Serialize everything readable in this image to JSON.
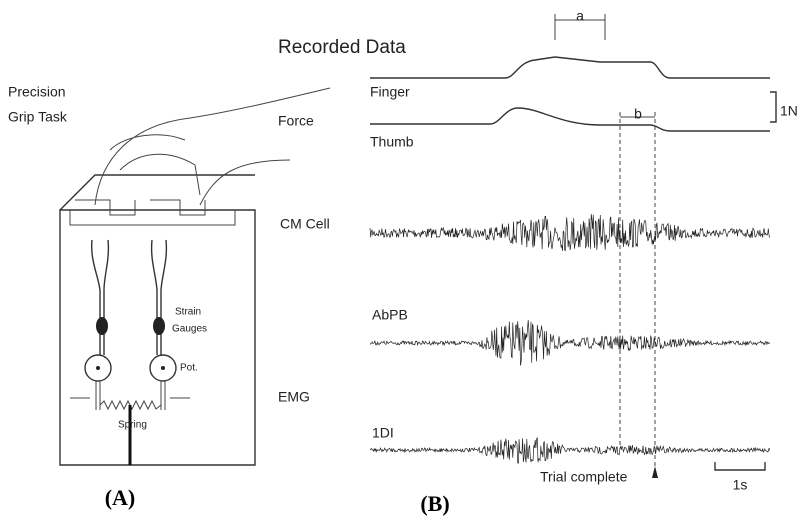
{
  "figure": {
    "apparatus": {
      "title_line1": "Precision",
      "title_line2": "Grip Task",
      "strain_line1": "Strain",
      "strain_line2": "Gauges",
      "pot": "Pot.",
      "spring": "Spring"
    },
    "recording": {
      "title": "Recorded Data",
      "finger": "Finger",
      "force": "Force",
      "thumb": "Thumb",
      "force_scale": "1N",
      "interval_a": "a",
      "interval_b": "b",
      "cm_cell": "CM Cell",
      "abpb": "AbPB",
      "emg": "EMG",
      "first_di": "1DI",
      "trial_complete": "Trial complete",
      "time_scale": "1s"
    },
    "panels": {
      "a": "(A)",
      "b": "(B)"
    }
  }
}
